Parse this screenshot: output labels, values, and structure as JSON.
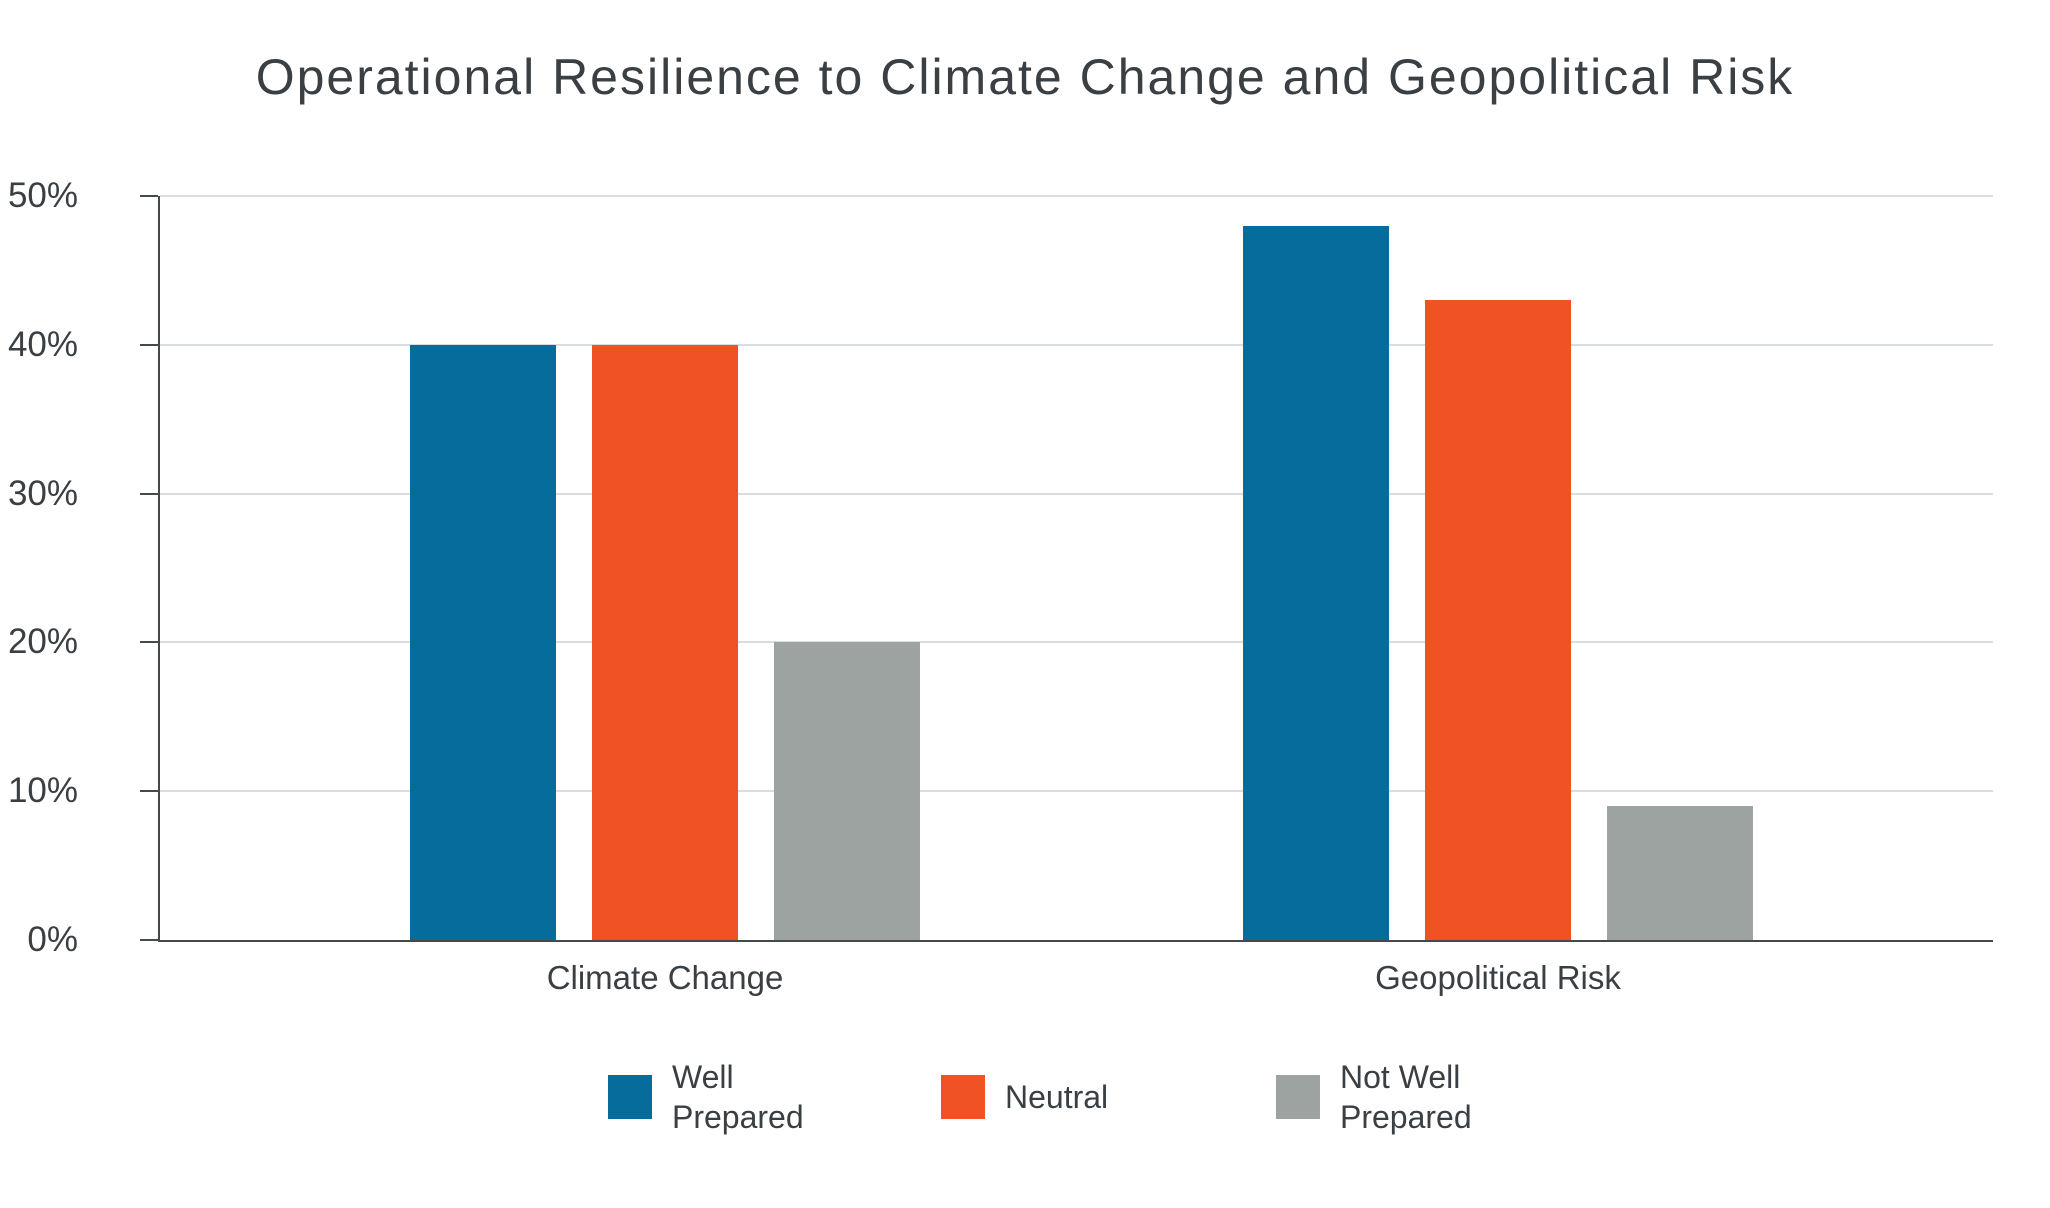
{
  "title": "Operational Resilience to Climate Change and Geopolitical Risk",
  "chart_data": {
    "type": "bar",
    "title": "Operational Resilience to Climate Change and Geopolitical Risk",
    "categories": [
      "Climate Change",
      "Geopolitical Risk"
    ],
    "series": [
      {
        "name": "Well Prepared",
        "legend_lines": [
          "Well",
          "Prepared"
        ],
        "color": "#056c9c",
        "values": [
          40,
          48
        ]
      },
      {
        "name": "Neutral",
        "legend_lines": [
          "Neutral"
        ],
        "color": "#f05223",
        "values": [
          40,
          43
        ]
      },
      {
        "name": "Not Well Prepared",
        "legend_lines": [
          "Not Well",
          "Prepared"
        ],
        "color": "#9da3a0",
        "values": [
          20,
          9
        ]
      }
    ],
    "xlabel": "",
    "ylabel": "",
    "ylim": [
      0,
      50
    ],
    "yticks": [
      0,
      10,
      20,
      30,
      40,
      50
    ],
    "ytick_labels": [
      "0%",
      "10%",
      "20%",
      "30%",
      "40%",
      "50%"
    ],
    "grid": true,
    "legend_position": "bottom"
  },
  "colors": {
    "background": "#ffffff",
    "text": "#3a3f43",
    "gridline": "#d9dde0",
    "axis": "#45494c",
    "series_blue": "#056c9c",
    "series_orange": "#f05223",
    "series_gray": "#9da3a0"
  }
}
